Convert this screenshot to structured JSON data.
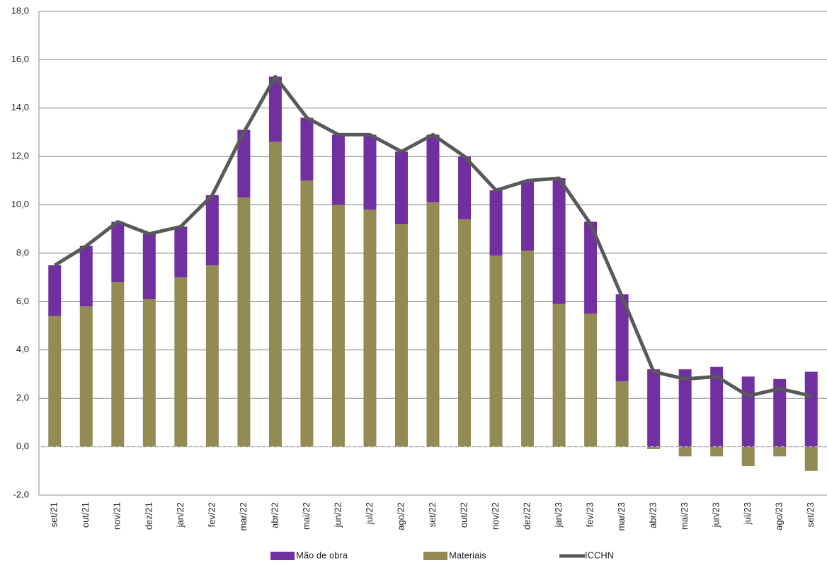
{
  "chart_data": {
    "type": "bar-line",
    "categories": [
      "set/21",
      "out/21",
      "nov/21",
      "dez/21",
      "jan/22",
      "fev/22",
      "mar/22",
      "abr/22",
      "mai/22",
      "jun/22",
      "jul/22",
      "ago/22",
      "set/22",
      "out/22",
      "nov/22",
      "dez/22",
      "jan/23",
      "fev/23",
      "mar/23",
      "abr/23",
      "mai/23",
      "jun/23",
      "jul/23",
      "ago/23",
      "set/23"
    ],
    "series": [
      {
        "name": "Mão de obra",
        "color": "#7030a0",
        "type": "bar",
        "values": [
          2.1,
          2.5,
          2.5,
          2.7,
          2.1,
          2.9,
          2.8,
          2.7,
          2.6,
          2.9,
          3.1,
          3.0,
          2.8,
          2.6,
          2.7,
          2.9,
          5.2,
          3.8,
          3.6,
          3.2,
          3.2,
          3.3,
          2.9,
          2.8,
          3.1
        ]
      },
      {
        "name": "Materiais",
        "color": "#948a54",
        "type": "bar",
        "values": [
          5.4,
          5.8,
          6.8,
          6.1,
          7.0,
          7.5,
          10.3,
          12.6,
          11.0,
          10.0,
          9.8,
          9.2,
          10.1,
          9.4,
          7.9,
          8.1,
          5.9,
          5.5,
          2.7,
          -0.1,
          -0.4,
          -0.4,
          -0.8,
          -0.4,
          -1.0
        ]
      },
      {
        "name": "ICCHN",
        "color": "#595959",
        "type": "line",
        "values": [
          7.5,
          8.3,
          9.3,
          8.8,
          9.1,
          10.4,
          13.0,
          15.3,
          13.6,
          12.9,
          12.9,
          12.2,
          12.9,
          12.0,
          10.6,
          11.0,
          11.1,
          9.2,
          6.2,
          3.1,
          2.8,
          2.9,
          2.1,
          2.4,
          2.1
        ]
      }
    ],
    "ylim": [
      -2,
      18
    ],
    "yticks": [
      {
        "value": -2,
        "label": "-2,0"
      },
      {
        "value": 0,
        "label": "0,0"
      },
      {
        "value": 2,
        "label": "2,0"
      },
      {
        "value": 4,
        "label": "4,0"
      },
      {
        "value": 6,
        "label": "6,0"
      },
      {
        "value": 8,
        "label": "8,0"
      },
      {
        "value": 10,
        "label": "10,0"
      },
      {
        "value": 12,
        "label": "12,0"
      },
      {
        "value": 14,
        "label": "14,0"
      },
      {
        "value": 16,
        "label": "16,0"
      },
      {
        "value": 18,
        "label": "18,0"
      }
    ],
    "grid": true,
    "legend": "bottom"
  }
}
